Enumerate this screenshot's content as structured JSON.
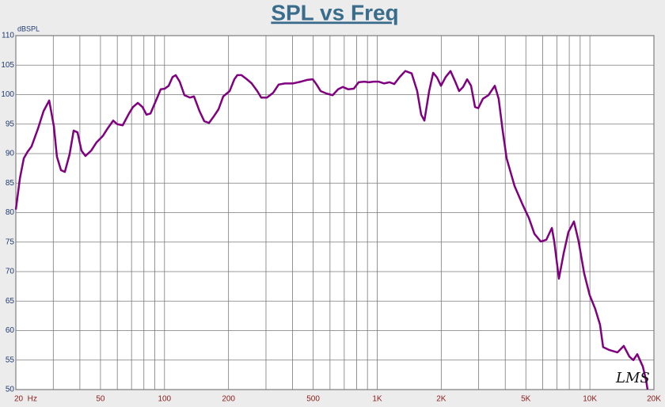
{
  "chart_data": {
    "type": "line",
    "title": "SPL vs Freq",
    "y_label": "dBSPL",
    "watermark": "LMS",
    "xscale": "log",
    "grid": true,
    "color": "#800080",
    "xlim": [
      20,
      20000
    ],
    "ylim": [
      50,
      110
    ],
    "xticks": [
      {
        "value": 20,
        "label": "20  Hz"
      },
      50,
      100,
      200,
      500,
      {
        "value": 1000,
        "label": "1K"
      },
      {
        "value": 2000,
        "label": "2K"
      },
      {
        "value": 5000,
        "label": "5K"
      },
      {
        "value": 10000,
        "label": "10K"
      },
      {
        "value": 20000,
        "label": "20K"
      }
    ],
    "x_minor_grid": [
      30,
      40,
      60,
      70,
      80,
      90,
      300,
      400,
      600,
      700,
      800,
      900,
      3000,
      4000,
      6000,
      7000,
      8000,
      9000
    ],
    "yticks": [
      50,
      55,
      60,
      65,
      70,
      75,
      80,
      85,
      90,
      95,
      100,
      105,
      110
    ],
    "x": [
      20,
      20.9,
      21.8,
      22.7,
      23.7,
      25.4,
      27.0,
      28.7,
      30.2,
      31.2,
      32.6,
      34.0,
      35.8,
      37.4,
      39.0,
      40.7,
      42.5,
      45.2,
      47.9,
      51.3,
      54.1,
      57.4,
      59.9,
      63.6,
      68.1,
      71.1,
      74.9,
      78.8,
      82.3,
      85.9,
      91.2,
      96.0,
      100.2,
      104.6,
      109.2,
      112.9,
      117.9,
      124.1,
      131.8,
      137.6,
      146.1,
      153.8,
      161.9,
      170.4,
      179.4,
      188.9,
      202.4,
      213,
      220,
      230,
      244,
      257,
      273,
      285,
      303,
      324,
      344,
      368,
      402,
      438,
      469,
      498,
      519,
      542,
      576,
      617,
      655,
      689,
      731,
      776,
      818,
      869,
      914,
      962,
      1014,
      1076,
      1143,
      1203,
      1277,
      1356,
      1452,
      1542,
      1610,
      1667,
      1755,
      1833,
      1911,
      1995,
      2100,
      2212,
      2328,
      2428,
      2535,
      2648,
      2762,
      2884,
      2985,
      3141,
      3334,
      3572,
      3725,
      3890,
      4060,
      4425,
      4820,
      5165,
      5485,
      5875,
      6240,
      6625,
      6800,
      7150,
      7530,
      7925,
      8415,
      8855,
      9400,
      9980,
      10590,
      11160,
      11540,
      12360,
      13480,
      14430,
      15330,
      16000,
      16700,
      17740,
      18370,
      18670
    ],
    "values": [
      80.5,
      85.8,
      89.2,
      90.3,
      91.2,
      94.2,
      97.2,
      99.0,
      94.6,
      89.5,
      87.2,
      86.9,
      89.9,
      93.9,
      93.6,
      90.5,
      89.6,
      90.5,
      91.9,
      93.0,
      94.3,
      95.6,
      95.0,
      94.8,
      96.8,
      97.9,
      98.6,
      97.9,
      96.6,
      96.8,
      99.0,
      100.9,
      101.0,
      101.5,
      103.0,
      103.3,
      102.2,
      99.9,
      99.5,
      99.7,
      97.2,
      95.5,
      95.2,
      96.3,
      97.5,
      99.7,
      100.6,
      102.6,
      103.3,
      103.3,
      102.6,
      101.9,
      100.6,
      99.5,
      99.5,
      100.3,
      101.7,
      101.9,
      101.9,
      102.2,
      102.5,
      102.6,
      101.7,
      100.6,
      100.2,
      99.9,
      100.9,
      101.3,
      100.9,
      101.0,
      102.1,
      102.2,
      102.1,
      102.2,
      102.2,
      101.9,
      102.1,
      101.8,
      103.0,
      104.0,
      103.6,
      100.6,
      96.6,
      95.6,
      100.6,
      103.7,
      102.9,
      101.5,
      103.0,
      104.0,
      102.2,
      100.6,
      101.3,
      102.6,
      101.5,
      97.9,
      97.7,
      99.3,
      99.9,
      101.5,
      99.3,
      93.9,
      89.2,
      84.5,
      81.4,
      79.1,
      76.4,
      75.1,
      75.4,
      77.4,
      75.1,
      68.8,
      73.1,
      76.7,
      78.5,
      75.1,
      69.7,
      66.0,
      63.7,
      61.0,
      57.2,
      56.7,
      56.3,
      57.4,
      55.6,
      55.0,
      56.0,
      53.9,
      51.6,
      50
    ]
  }
}
